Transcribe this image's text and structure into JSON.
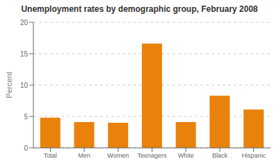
{
  "chart_data": {
    "type": "bar",
    "title": "Unemployment rates by demographic group, February 2008",
    "categories": [
      "Total",
      "Men",
      "Women",
      "Teenagers",
      "White",
      "Black",
      "Hispanic"
    ],
    "values": [
      4.8,
      4.1,
      4.0,
      16.6,
      4.1,
      8.3,
      6.1
    ],
    "color": "#E8820A",
    "ylabel": "Percent",
    "ylim": [
      0,
      20
    ],
    "yticks": [
      0,
      5,
      10,
      15,
      20
    ],
    "grid": true
  }
}
